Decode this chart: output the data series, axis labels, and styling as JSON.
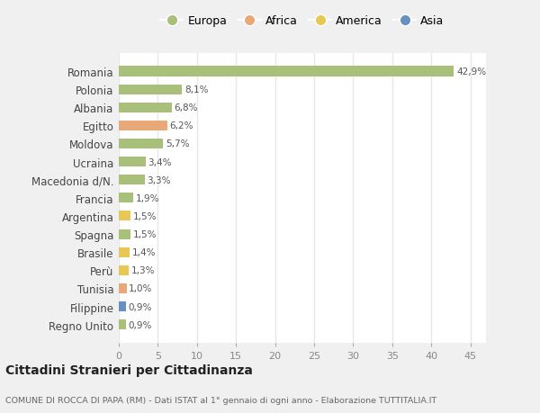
{
  "countries": [
    "Romania",
    "Polonia",
    "Albania",
    "Egitto",
    "Moldova",
    "Ucraina",
    "Macedonia d/N.",
    "Francia",
    "Argentina",
    "Spagna",
    "Brasile",
    "Perù",
    "Tunisia",
    "Filippine",
    "Regno Unito"
  ],
  "values": [
    42.9,
    8.1,
    6.8,
    6.2,
    5.7,
    3.4,
    3.3,
    1.9,
    1.5,
    1.5,
    1.4,
    1.3,
    1.0,
    0.9,
    0.9
  ],
  "labels": [
    "42,9%",
    "8,1%",
    "6,8%",
    "6,2%",
    "5,7%",
    "3,4%",
    "3,3%",
    "1,9%",
    "1,5%",
    "1,5%",
    "1,4%",
    "1,3%",
    "1,0%",
    "0,9%",
    "0,9%"
  ],
  "continents": [
    "Europa",
    "Europa",
    "Europa",
    "Africa",
    "Europa",
    "Europa",
    "Europa",
    "Europa",
    "America",
    "Europa",
    "America",
    "America",
    "Africa",
    "Asia",
    "Europa"
  ],
  "colors": {
    "Europa": "#a8c07a",
    "Africa": "#e8a878",
    "America": "#e8c855",
    "Asia": "#6890c0"
  },
  "legend_order": [
    "Europa",
    "Africa",
    "America",
    "Asia"
  ],
  "xlim": [
    0,
    47
  ],
  "xticks": [
    0,
    5,
    10,
    15,
    20,
    25,
    30,
    35,
    40,
    45
  ],
  "title": "Cittadini Stranieri per Cittadinanza",
  "subtitle": "COMUNE DI ROCCA DI PAPA (RM) - Dati ISTAT al 1° gennaio di ogni anno - Elaborazione TUTTITALIA.IT",
  "bg_color": "#f0f0f0",
  "plot_bg_color": "#ffffff",
  "grid_color": "#e8e8e8",
  "bar_height": 0.55
}
